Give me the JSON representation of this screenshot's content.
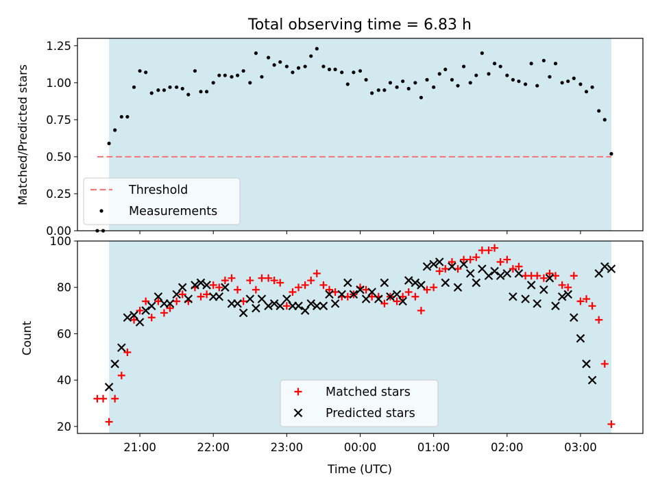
{
  "chart_data": [
    {
      "type": "scatter",
      "title": "Total observing time = 6.83 h",
      "ylabel": "Matched/Predicted stars",
      "xlabel": "",
      "xlim": [
        -3.85,
        3.85
      ],
      "ylim": [
        0,
        1.3
      ],
      "yticks": [
        0.0,
        0.25,
        0.5,
        0.75,
        1.0,
        1.25
      ],
      "ytick_labels": [
        "0.00",
        "0.25",
        "0.50",
        "0.75",
        "1.00",
        "1.25"
      ],
      "shaded_region": {
        "x_start": -3.42,
        "x_end": 3.42,
        "color": "#d3e9f0"
      },
      "threshold": {
        "name": "Threshold",
        "value": 0.5,
        "x_start": -3.58,
        "x_end": 3.42,
        "color": "#f47a7a"
      },
      "legend_position": "lower-left",
      "series": [
        {
          "name": "Measurements",
          "color": "#000000",
          "x": [
            -3.58,
            -3.5,
            -3.42,
            -3.34,
            -3.25,
            -3.17,
            -3.08,
            -3.0,
            -2.92,
            -2.84,
            -2.75,
            -2.67,
            -2.59,
            -2.5,
            -2.42,
            -2.34,
            -2.25,
            -2.17,
            -2.09,
            -2.0,
            -1.92,
            -1.84,
            -1.75,
            -1.67,
            -1.59,
            -1.5,
            -1.42,
            -1.34,
            -1.25,
            -1.17,
            -1.09,
            -1.0,
            -0.92,
            -0.84,
            -0.75,
            -0.67,
            -0.59,
            -0.5,
            -0.42,
            -0.34,
            -0.25,
            -0.17,
            -0.09,
            0.0,
            0.08,
            0.16,
            0.25,
            0.33,
            0.41,
            0.5,
            0.58,
            0.66,
            0.75,
            0.83,
            0.91,
            1.0,
            1.08,
            1.16,
            1.25,
            1.33,
            1.41,
            1.5,
            1.58,
            1.66,
            1.75,
            1.83,
            1.91,
            2.0,
            2.08,
            2.16,
            2.25,
            2.33,
            2.41,
            2.5,
            2.58,
            2.66,
            2.75,
            2.83,
            2.91,
            3.0,
            3.08,
            3.16,
            3.25,
            3.33,
            3.42
          ],
          "values": [
            0.0,
            0.0,
            0.59,
            0.68,
            0.77,
            0.77,
            0.97,
            1.08,
            1.07,
            0.93,
            0.95,
            0.95,
            0.97,
            0.97,
            0.96,
            0.92,
            1.08,
            0.94,
            0.94,
            1.0,
            1.05,
            1.05,
            1.04,
            1.05,
            1.08,
            1.0,
            1.2,
            1.04,
            1.17,
            1.12,
            1.14,
            1.11,
            1.07,
            1.1,
            1.11,
            1.18,
            1.23,
            1.11,
            1.09,
            1.09,
            1.07,
            0.99,
            1.07,
            1.08,
            1.02,
            0.93,
            0.95,
            0.95,
            1.0,
            0.97,
            1.01,
            0.96,
            1.0,
            0.9,
            1.02,
            0.97,
            1.06,
            1.09,
            1.02,
            0.98,
            1.11,
            1.0,
            1.05,
            1.2,
            1.06,
            1.13,
            1.11,
            1.05,
            1.02,
            1.01,
            0.99,
            1.13,
            0.98,
            1.15,
            1.04,
            1.13,
            1.0,
            1.01,
            1.03,
            0.99,
            0.94,
            0.97,
            0.81,
            0.75,
            0.52
          ]
        }
      ]
    },
    {
      "type": "scatter",
      "title": "",
      "ylabel": "Count",
      "xlabel": "Time (UTC)",
      "xlim": [
        -3.85,
        3.85
      ],
      "ylim": [
        17,
        100
      ],
      "yticks": [
        20,
        40,
        60,
        80,
        100
      ],
      "ytick_labels": [
        "20",
        "40",
        "60",
        "80",
        "100"
      ],
      "xticks": [
        -3,
        -2,
        -1,
        0,
        1,
        2,
        3
      ],
      "xtick_labels": [
        "21:00",
        "22:00",
        "23:00",
        "00:00",
        "01:00",
        "02:00",
        "03:00"
      ],
      "shaded_region": {
        "x_start": -3.42,
        "x_end": 3.42,
        "color": "#d3e9f0"
      },
      "legend_position": "bottom-center",
      "series": [
        {
          "name": "Matched stars",
          "color": "#ff0000",
          "marker": "plus",
          "x": [
            -3.58,
            -3.5,
            -3.42,
            -3.34,
            -3.25,
            -3.17,
            -3.08,
            -3.0,
            -2.92,
            -2.84,
            -2.75,
            -2.67,
            -2.59,
            -2.5,
            -2.42,
            -2.34,
            -2.25,
            -2.17,
            -2.09,
            -2.0,
            -1.92,
            -1.84,
            -1.75,
            -1.67,
            -1.59,
            -1.5,
            -1.42,
            -1.34,
            -1.25,
            -1.17,
            -1.09,
            -1.0,
            -0.92,
            -0.84,
            -0.75,
            -0.67,
            -0.59,
            -0.5,
            -0.42,
            -0.34,
            -0.25,
            -0.17,
            -0.09,
            0.0,
            0.08,
            0.16,
            0.25,
            0.33,
            0.41,
            0.5,
            0.58,
            0.66,
            0.75,
            0.83,
            0.91,
            1.0,
            1.08,
            1.16,
            1.25,
            1.33,
            1.41,
            1.5,
            1.58,
            1.66,
            1.75,
            1.83,
            1.91,
            2.0,
            2.08,
            2.16,
            2.25,
            2.33,
            2.41,
            2.5,
            2.58,
            2.66,
            2.75,
            2.83,
            2.91,
            3.0,
            3.08,
            3.16,
            3.25,
            3.33,
            3.42
          ],
          "values": [
            32,
            32,
            22,
            32,
            42,
            52,
            66,
            70,
            74,
            67,
            74,
            69,
            71,
            74,
            77,
            74,
            80,
            76,
            77,
            81,
            80,
            83,
            84,
            79,
            74,
            83,
            79,
            84,
            84,
            83,
            82,
            72,
            78,
            80,
            81,
            83,
            86,
            81,
            79,
            78,
            76,
            76,
            77,
            80,
            79,
            76,
            76,
            73,
            76,
            74,
            76,
            78,
            76,
            70,
            79,
            80,
            87,
            88,
            91,
            88,
            92,
            92,
            93,
            96,
            96,
            97,
            91,
            92,
            88,
            89,
            85,
            85,
            85,
            84,
            86,
            85,
            81,
            80,
            85,
            74,
            75,
            72,
            66,
            47,
            21
          ]
        },
        {
          "name": "Predicted stars",
          "color": "#000000",
          "marker": "x",
          "x": [
            -3.42,
            -3.34,
            -3.25,
            -3.17,
            -3.08,
            -3.0,
            -2.92,
            -2.84,
            -2.75,
            -2.67,
            -2.59,
            -2.5,
            -2.42,
            -2.34,
            -2.25,
            -2.17,
            -2.09,
            -2.0,
            -1.92,
            -1.84,
            -1.75,
            -1.67,
            -1.59,
            -1.5,
            -1.42,
            -1.34,
            -1.25,
            -1.17,
            -1.09,
            -1.0,
            -0.92,
            -0.84,
            -0.75,
            -0.67,
            -0.59,
            -0.5,
            -0.42,
            -0.34,
            -0.25,
            -0.17,
            -0.09,
            0.0,
            0.08,
            0.16,
            0.25,
            0.33,
            0.41,
            0.5,
            0.58,
            0.66,
            0.75,
            0.83,
            0.91,
            1.0,
            1.08,
            1.16,
            1.25,
            1.33,
            1.41,
            1.5,
            1.58,
            1.66,
            1.75,
            1.83,
            1.91,
            2.0,
            2.08,
            2.16,
            2.25,
            2.33,
            2.41,
            2.5,
            2.58,
            2.66,
            2.75,
            2.83,
            2.91,
            3.0,
            3.08,
            3.16,
            3.25,
            3.33,
            3.42
          ],
          "values": [
            37,
            47,
            54,
            67,
            68,
            65,
            70,
            72,
            76,
            73,
            73,
            77,
            80,
            75,
            81,
            82,
            81,
            76,
            76,
            80,
            73,
            73,
            69,
            75,
            71,
            75,
            72,
            73,
            72,
            75,
            72,
            72,
            70,
            73,
            72,
            72,
            77,
            73,
            77,
            82,
            77,
            79,
            75,
            78,
            75,
            82,
            76,
            77,
            74,
            83,
            82,
            81,
            89,
            90,
            91,
            82,
            89,
            80,
            90,
            86,
            82,
            88,
            85,
            87,
            85,
            86,
            76,
            86,
            75,
            81,
            73,
            79,
            84,
            72,
            76,
            77,
            67,
            58,
            47,
            40,
            86,
            89,
            88
          ]
        }
      ]
    }
  ]
}
